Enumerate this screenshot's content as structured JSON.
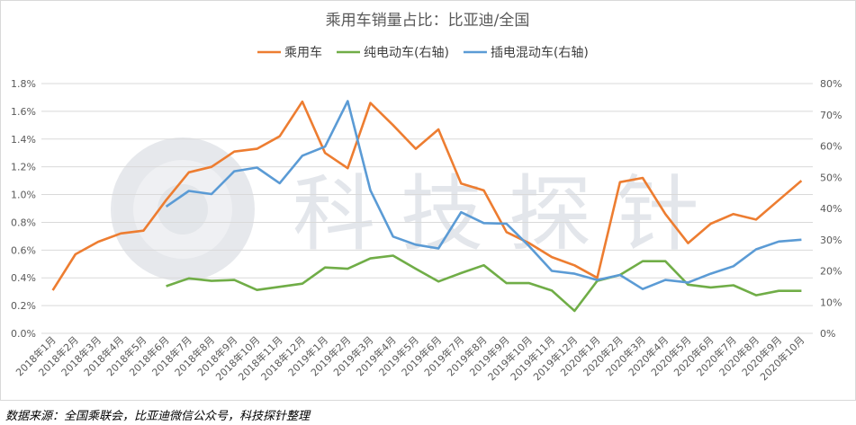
{
  "source_note": "数据来源：全国乘联会，比亚迪微信公众号，科技探针整理",
  "watermark": "科技探针",
  "chart_data": {
    "type": "line",
    "title": "乘用车销量占比：比亚迪/全国",
    "categories": [
      "2018年1月",
      "2018年2月",
      "2018年3月",
      "2018年4月",
      "2018年5月",
      "2018年6月",
      "2018年7月",
      "2018年8月",
      "2018年9月",
      "2018年10月",
      "2018年11月",
      "2018年12月",
      "2019年1月",
      "2019年2月",
      "2019年3月",
      "2019年4月",
      "2019年5月",
      "2019年6月",
      "2019年7月",
      "2019年8月",
      "2019年9月",
      "2019年10月",
      "2019年11月",
      "2019年12月",
      "2020年1月",
      "2020年2月",
      "2020年3月",
      "2020年4月",
      "2020年5月",
      "2020年6月",
      "2020年7月",
      "2020年8月",
      "2020年9月",
      "2020年10月"
    ],
    "left_axis": {
      "ticks": [
        "0.0%",
        "0.2%",
        "0.4%",
        "0.6%",
        "0.8%",
        "1.0%",
        "1.2%",
        "1.4%",
        "1.6%",
        "1.8%"
      ],
      "ylim": [
        0,
        1.8
      ]
    },
    "right_axis": {
      "ticks": [
        "0%",
        "10%",
        "20%",
        "30%",
        "40%",
        "50%",
        "60%",
        "70%",
        "80%"
      ],
      "ylim": [
        0,
        80
      ]
    },
    "legend_position": "top",
    "grid": true,
    "series": [
      {
        "name": "乘用车",
        "axis": "left",
        "color": "#ED7D31",
        "values": [
          0.31,
          0.57,
          0.66,
          0.72,
          0.74,
          0.96,
          1.16,
          1.2,
          1.31,
          1.33,
          1.42,
          1.67,
          1.3,
          1.19,
          1.66,
          1.5,
          1.33,
          1.47,
          1.08,
          1.03,
          0.73,
          0.65,
          0.55,
          0.49,
          0.4,
          1.09,
          1.12,
          0.86,
          0.65,
          0.79,
          0.86,
          0.82,
          0.96,
          1.1
        ]
      },
      {
        "name": "纯电动车(右轴)",
        "axis": "right",
        "color": "#70AD47",
        "values": [
          null,
          null,
          null,
          null,
          null,
          15.1,
          17.6,
          16.8,
          17.1,
          13.9,
          14.9,
          15.9,
          21.1,
          20.7,
          24.0,
          24.9,
          20.7,
          16.6,
          19.3,
          21.8,
          16.1,
          16.1,
          13.7,
          7.2,
          16.8,
          18.7,
          23.1,
          23.1,
          15.6,
          14.7,
          15.4,
          12.2,
          13.6,
          13.6
        ]
      },
      {
        "name": "插电混动车(右轴)",
        "axis": "right",
        "color": "#5B9BD5",
        "values": [
          null,
          null,
          null,
          null,
          null,
          40.6,
          45.6,
          44.6,
          51.9,
          53.1,
          48.1,
          56.9,
          59.8,
          74.4,
          45.8,
          31.0,
          28.4,
          27.2,
          38.8,
          35.3,
          35.1,
          27.9,
          20.0,
          19.1,
          17.1,
          18.7,
          14.2,
          17.1,
          16.3,
          19.1,
          21.5,
          26.9,
          29.4,
          30.0
        ]
      }
    ]
  }
}
